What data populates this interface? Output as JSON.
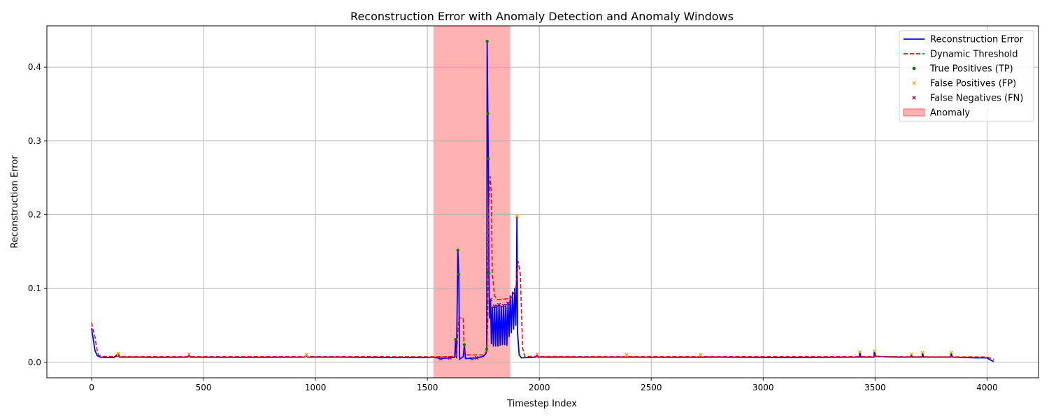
{
  "chart_data": {
    "type": "line",
    "title": "Reconstruction Error with Anomaly Detection and Anomaly Windows",
    "xlabel": "Timestep Index",
    "ylabel": "Reconstruction Error",
    "xlim": [
      -200,
      4230
    ],
    "ylim": [
      -0.021,
      0.456
    ],
    "x_ticks": [
      0,
      500,
      1000,
      1500,
      2000,
      2500,
      3000,
      3500,
      4000
    ],
    "y_ticks": [
      0.0,
      0.1,
      0.2,
      0.3,
      0.4
    ],
    "x_tick_labels": [
      "0",
      "500",
      "1000",
      "1500",
      "2000",
      "2500",
      "3000",
      "3500",
      "4000"
    ],
    "y_tick_labels": [
      "0.0",
      "0.1",
      "0.2",
      "0.3",
      "0.4"
    ],
    "grid": true,
    "legend_position": "top-right",
    "anomaly_windows": [
      {
        "start": 1527,
        "end": 1870
      }
    ],
    "series": [
      {
        "name": "Reconstruction Error",
        "color": "#0000ff",
        "style": "solid",
        "points": [
          [
            0,
            0.046
          ],
          [
            8,
            0.03
          ],
          [
            15,
            0.016
          ],
          [
            25,
            0.009
          ],
          [
            40,
            0.007
          ],
          [
            60,
            0.0065
          ],
          [
            100,
            0.0065
          ],
          [
            120,
            0.012
          ],
          [
            125,
            0.007
          ],
          [
            200,
            0.007
          ],
          [
            300,
            0.0068
          ],
          [
            430,
            0.007
          ],
          [
            435,
            0.011
          ],
          [
            440,
            0.007
          ],
          [
            600,
            0.0068
          ],
          [
            800,
            0.0068
          ],
          [
            950,
            0.007
          ],
          [
            960,
            0.01
          ],
          [
            965,
            0.007
          ],
          [
            1100,
            0.007
          ],
          [
            1300,
            0.0065
          ],
          [
            1500,
            0.0066
          ],
          [
            1527,
            0.007
          ],
          [
            1560,
            0.005
          ],
          [
            1600,
            0.006
          ],
          [
            1622,
            0.007
          ],
          [
            1626,
            0.031
          ],
          [
            1630,
            0.006
          ],
          [
            1636,
            0.152
          ],
          [
            1640,
            0.119
          ],
          [
            1644,
            0.004
          ],
          [
            1660,
            0.008
          ],
          [
            1665,
            0.024
          ],
          [
            1670,
            0.005
          ],
          [
            1720,
            0.006
          ],
          [
            1750,
            0.008
          ],
          [
            1762,
            0.012
          ],
          [
            1765,
            0.018
          ],
          [
            1767,
            0.435
          ],
          [
            1770,
            0.337
          ],
          [
            1772,
            0.276
          ],
          [
            1775,
            0.121
          ],
          [
            1778,
            0.06
          ],
          [
            1782,
            0.085
          ],
          [
            1786,
            0.025
          ],
          [
            1790,
            0.075
          ],
          [
            1795,
            0.022
          ],
          [
            1800,
            0.076
          ],
          [
            1805,
            0.022
          ],
          [
            1810,
            0.077
          ],
          [
            1815,
            0.022
          ],
          [
            1820,
            0.078
          ],
          [
            1825,
            0.023
          ],
          [
            1830,
            0.076
          ],
          [
            1835,
            0.024
          ],
          [
            1840,
            0.077
          ],
          [
            1845,
            0.024
          ],
          [
            1850,
            0.078
          ],
          [
            1855,
            0.023
          ],
          [
            1860,
            0.08
          ],
          [
            1865,
            0.035
          ],
          [
            1870,
            0.09
          ],
          [
            1875,
            0.04
          ],
          [
            1880,
            0.095
          ],
          [
            1885,
            0.045
          ],
          [
            1890,
            0.1
          ],
          [
            1895,
            0.05
          ],
          [
            1898,
            0.107
          ],
          [
            1900,
            0.198
          ],
          [
            1903,
            0.04
          ],
          [
            1910,
            0.01
          ],
          [
            1920,
            0.006
          ],
          [
            1985,
            0.007
          ],
          [
            1990,
            0.011
          ],
          [
            1995,
            0.007
          ],
          [
            2100,
            0.007
          ],
          [
            2200,
            0.007
          ],
          [
            2400,
            0.007
          ],
          [
            2600,
            0.0068
          ],
          [
            2800,
            0.007
          ],
          [
            3000,
            0.0066
          ],
          [
            3200,
            0.0066
          ],
          [
            3430,
            0.007
          ],
          [
            3432,
            0.014
          ],
          [
            3436,
            0.007
          ],
          [
            3495,
            0.007
          ],
          [
            3497,
            0.015
          ],
          [
            3502,
            0.008
          ],
          [
            3600,
            0.007
          ],
          [
            3660,
            0.007
          ],
          [
            3662,
            0.011
          ],
          [
            3666,
            0.007
          ],
          [
            3710,
            0.007
          ],
          [
            3712,
            0.013
          ],
          [
            3716,
            0.007
          ],
          [
            3838,
            0.007
          ],
          [
            3840,
            0.013
          ],
          [
            3845,
            0.007
          ],
          [
            3950,
            0.006
          ],
          [
            4000,
            0.006
          ],
          [
            4010,
            0.004
          ],
          [
            4030,
            0.001
          ]
        ]
      },
      {
        "name": "Dynamic Threshold",
        "color": "#ff0000",
        "style": "dashed",
        "points": [
          [
            0,
            0.054
          ],
          [
            6,
            0.045
          ],
          [
            15,
            0.035
          ],
          [
            22,
            0.02
          ],
          [
            30,
            0.01
          ],
          [
            50,
            0.008
          ],
          [
            150,
            0.0078
          ],
          [
            500,
            0.0078
          ],
          [
            900,
            0.0076
          ],
          [
            1300,
            0.0076
          ],
          [
            1527,
            0.0075
          ],
          [
            1600,
            0.0075
          ],
          [
            1630,
            0.009
          ],
          [
            1640,
            0.06
          ],
          [
            1660,
            0.06
          ],
          [
            1665,
            0.012
          ],
          [
            1680,
            0.01
          ],
          [
            1750,
            0.01
          ],
          [
            1765,
            0.015
          ],
          [
            1770,
            0.06
          ],
          [
            1773,
            0.2
          ],
          [
            1780,
            0.252
          ],
          [
            1785,
            0.23
          ],
          [
            1790,
            0.12
          ],
          [
            1800,
            0.09
          ],
          [
            1815,
            0.085
          ],
          [
            1850,
            0.086
          ],
          [
            1870,
            0.086
          ],
          [
            1880,
            0.09
          ],
          [
            1895,
            0.1
          ],
          [
            1905,
            0.137
          ],
          [
            1915,
            0.12
          ],
          [
            1925,
            0.02
          ],
          [
            1935,
            0.008
          ],
          [
            2200,
            0.0078
          ],
          [
            2700,
            0.0078
          ],
          [
            3200,
            0.0076
          ],
          [
            3600,
            0.0076
          ],
          [
            4000,
            0.0072
          ],
          [
            4030,
            0.004
          ]
        ]
      }
    ],
    "markers": {
      "true_positives": {
        "name": "True Positives (TP)",
        "color": "#008000",
        "points": [
          [
            1636,
            0.152
          ],
          [
            1640,
            0.119
          ],
          [
            1626,
            0.031
          ],
          [
            1665,
            0.024
          ],
          [
            1767,
            0.435
          ],
          [
            1770,
            0.337
          ],
          [
            1772,
            0.276
          ],
          [
            1775,
            0.121
          ],
          [
            1765,
            0.018
          ]
        ]
      },
      "false_positives": {
        "name": "False Positives (FP)",
        "color": "#ffa500",
        "points": [
          [
            120,
            0.012
          ],
          [
            435,
            0.011
          ],
          [
            960,
            0.01
          ],
          [
            1900,
            0.198
          ],
          [
            1990,
            0.011
          ],
          [
            2390,
            0.01
          ],
          [
            2720,
            0.01
          ],
          [
            3432,
            0.014
          ],
          [
            3497,
            0.015
          ],
          [
            3662,
            0.011
          ],
          [
            3712,
            0.013
          ],
          [
            3840,
            0.013
          ]
        ]
      },
      "false_negatives": {
        "name": "False Negatives (FN)",
        "color": "#800080",
        "points": [
          [
            1560,
            0.005
          ],
          [
            1600,
            0.006
          ],
          [
            1700,
            0.005
          ],
          [
            1720,
            0.006
          ],
          [
            1782,
            0.085
          ],
          [
            1800,
            0.076
          ],
          [
            1820,
            0.078
          ],
          [
            1840,
            0.077
          ],
          [
            1860,
            0.08
          ]
        ]
      }
    },
    "legend": [
      {
        "label": "Reconstruction Error",
        "kind": "line",
        "color": "#0000ff",
        "dash": false
      },
      {
        "label": "Dynamic Threshold",
        "kind": "line",
        "color": "#ff0000",
        "dash": true
      },
      {
        "label": "True Positives (TP)",
        "kind": "dot",
        "color": "#008000"
      },
      {
        "label": "False Positives (FP)",
        "kind": "x",
        "color": "#ffa500"
      },
      {
        "label": "False Negatives (FN)",
        "kind": "x",
        "color": "#800080"
      },
      {
        "label": "Anomaly",
        "kind": "patch",
        "color": "#ff8080"
      }
    ]
  }
}
